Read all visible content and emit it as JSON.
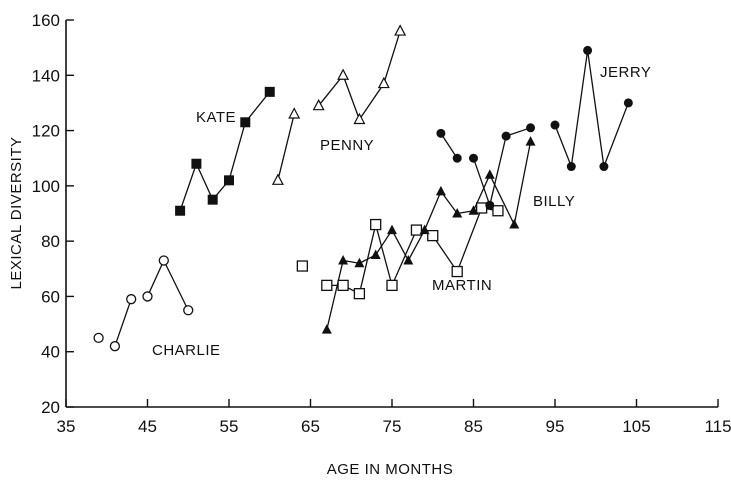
{
  "chart_data": {
    "type": "scatter",
    "xlabel": "AGE IN MONTHS",
    "ylabel": "LEXICAL DIVERSITY",
    "xlim": [
      35,
      115
    ],
    "ylim": [
      20,
      160
    ],
    "xticks": [
      "35",
      "45",
      "55",
      "65",
      "75",
      "85",
      "95",
      "105",
      "115"
    ],
    "yticks": [
      "20",
      "40",
      "60",
      "80",
      "100",
      "120",
      "140",
      "160"
    ],
    "grid": false,
    "series": [
      {
        "name": "CHARLIE",
        "marker": "circle-open",
        "x": [
          39,
          41,
          43,
          45,
          47,
          50
        ],
        "y": [
          45,
          42,
          59,
          60,
          73,
          55
        ],
        "connect": [
          [
            1,
            2
          ],
          [
            3,
            4
          ],
          [
            4,
            5
          ]
        ]
      },
      {
        "name": "KATE",
        "marker": "square-filled",
        "x": [
          49,
          51,
          53,
          55,
          57,
          60
        ],
        "y": [
          91,
          108,
          95,
          102,
          123,
          134
        ],
        "connect": [
          [
            0,
            1
          ],
          [
            1,
            2
          ],
          [
            2,
            3
          ],
          [
            3,
            4
          ],
          [
            4,
            5
          ]
        ]
      },
      {
        "name": "PENNY",
        "marker": "triangle-open",
        "x": [
          61,
          63,
          66,
          69,
          71,
          74,
          76
        ],
        "y": [
          102,
          126,
          129,
          140,
          124,
          137,
          156
        ],
        "connect": [
          [
            0,
            1
          ],
          [
            2,
            3
          ],
          [
            3,
            4
          ],
          [
            4,
            5
          ],
          [
            5,
            6
          ]
        ]
      },
      {
        "name": "MARTIN",
        "marker": "square-open",
        "x": [
          64,
          67,
          69,
          71,
          73,
          75,
          78,
          80,
          83,
          86,
          88
        ],
        "y": [
          71,
          64,
          64,
          61,
          86,
          64,
          84,
          82,
          69,
          92,
          91
        ],
        "connect": [
          [
            1,
            2
          ],
          [
            2,
            3
          ],
          [
            3,
            4
          ],
          [
            4,
            5
          ],
          [
            5,
            6
          ],
          [
            7,
            8
          ],
          [
            8,
            9
          ],
          [
            9,
            10
          ]
        ]
      },
      {
        "name": "BILLY",
        "marker": "triangle-filled",
        "x": [
          67,
          69,
          71,
          73,
          75,
          77,
          79,
          81,
          83,
          85,
          87,
          90,
          92
        ],
        "y": [
          48,
          73,
          72,
          75,
          84,
          73,
          84,
          98,
          90,
          91,
          104,
          86,
          116
        ],
        "connect": [
          [
            0,
            1
          ],
          [
            1,
            2
          ],
          [
            2,
            3
          ],
          [
            3,
            4
          ],
          [
            4,
            5
          ],
          [
            5,
            6
          ],
          [
            6,
            7
          ],
          [
            7,
            8
          ],
          [
            8,
            9
          ],
          [
            9,
            10
          ],
          [
            10,
            11
          ],
          [
            11,
            12
          ]
        ]
      },
      {
        "name": "JERRY",
        "marker": "circle-filled",
        "x": [
          81,
          83,
          85,
          87,
          89,
          92,
          95,
          97,
          99,
          101,
          104
        ],
        "y": [
          119,
          110,
          110,
          93,
          118,
          121,
          122,
          107,
          149,
          107,
          130
        ],
        "connect": [
          [
            0,
            1
          ],
          [
            2,
            3
          ],
          [
            3,
            4
          ],
          [
            4,
            5
          ],
          [
            6,
            7
          ],
          [
            7,
            8
          ],
          [
            8,
            9
          ],
          [
            9,
            10
          ]
        ]
      }
    ]
  }
}
